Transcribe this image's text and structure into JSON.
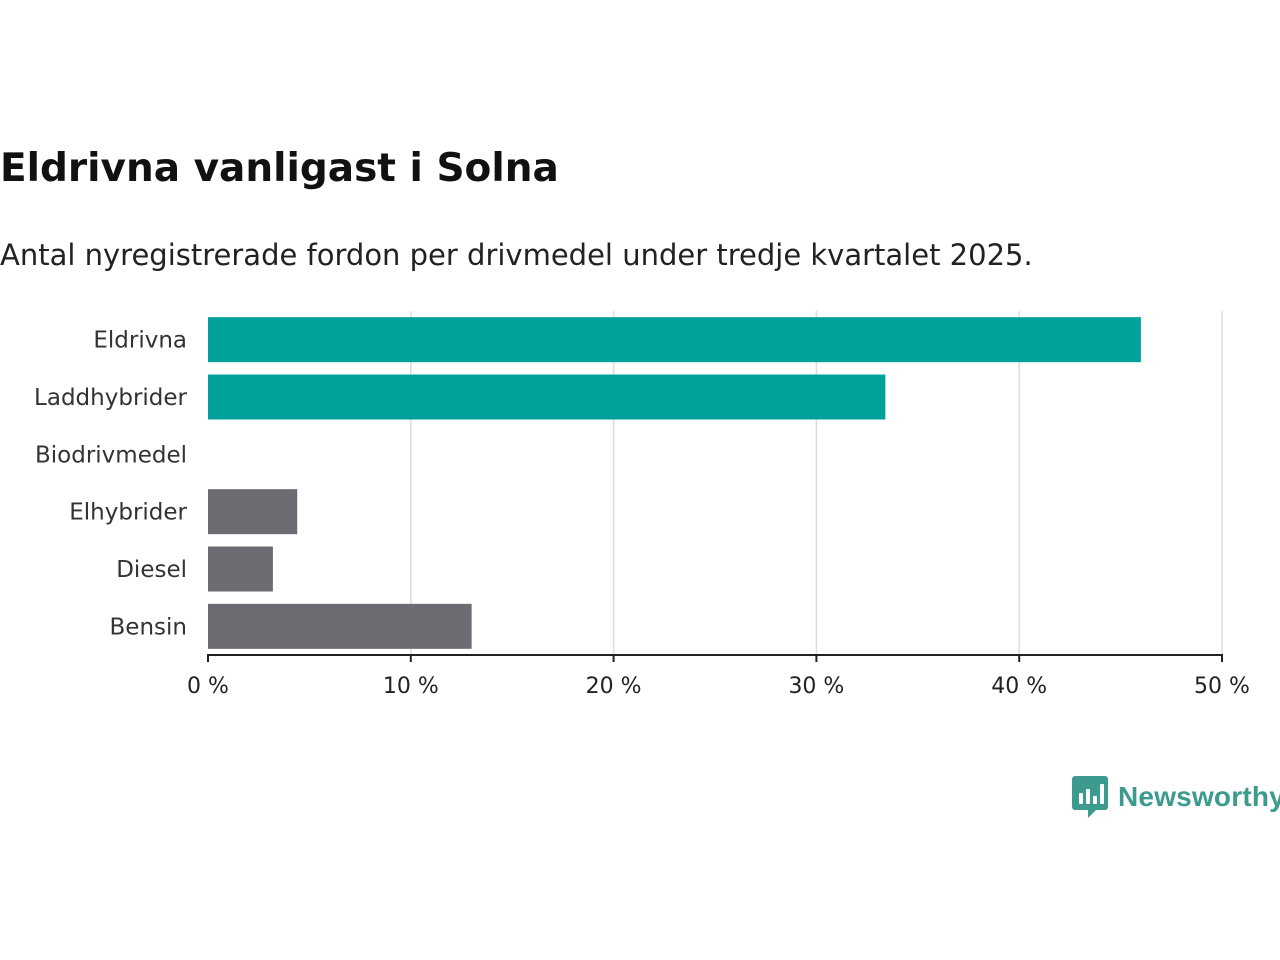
{
  "title": "Eldrivna vanligast i Solna",
  "subtitle": "Antal nyregistrerade fordon per drivmedel under tredje kvartalet 2025.",
  "brand": {
    "name": "Newsworthy",
    "color": "#3d9a8e"
  },
  "colors": {
    "highlight": "#00a19a",
    "muted": "#6e6c73",
    "grid": "#dddddd",
    "axis": "#222222"
  },
  "chart_data": {
    "type": "bar",
    "orientation": "horizontal",
    "title": "Eldrivna vanligast i Solna",
    "subtitle": "Antal nyregistrerade fordon per drivmedel under tredje kvartalet 2025.",
    "xlabel": "",
    "ylabel": "",
    "categories": [
      "Eldrivna",
      "Laddhybrider",
      "Biodrivmedel",
      "Elhybrider",
      "Diesel",
      "Bensin"
    ],
    "values": [
      46.0,
      33.4,
      0,
      4.4,
      3.2,
      13.0
    ],
    "highlight": [
      true,
      true,
      true,
      false,
      false,
      false
    ],
    "xlim": [
      0,
      50
    ],
    "xticks": [
      0,
      10,
      20,
      30,
      40,
      50
    ],
    "tick_labels": [
      "0 %",
      "10 %",
      "20 %",
      "30 %",
      "40 %",
      "50 %"
    ],
    "grid": true,
    "legend": "none"
  }
}
